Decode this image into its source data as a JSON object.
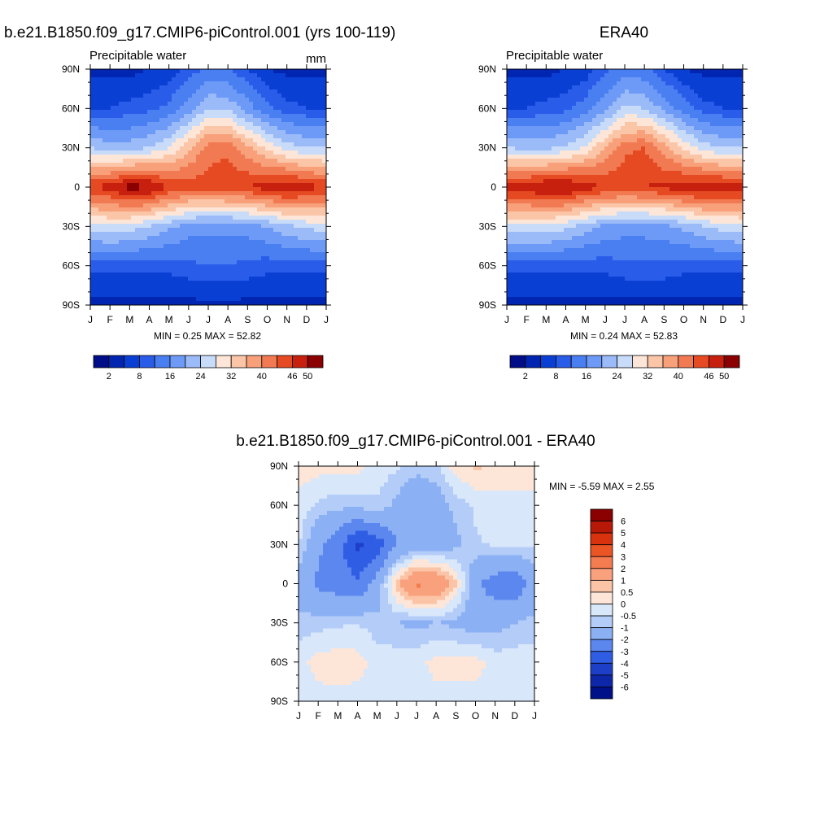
{
  "panels": [
    {
      "title": "b.e21.B1850.f09_g17.CMIP6-piControl.001 (yrs 100-119)",
      "left_label": "Precipitable water",
      "right_label": "mm",
      "stats": "MIN =   0.25 MAX =  52.82",
      "y_ticks": [
        "90N",
        "60N",
        "30N",
        "0",
        "30S",
        "60S",
        "90S"
      ],
      "x_ticks": [
        "J",
        "F",
        "M",
        "A",
        "M",
        "J",
        "J",
        "A",
        "S",
        "O",
        "N",
        "D",
        "J"
      ],
      "colorbar_labels": [
        "2",
        "8",
        "16",
        "24",
        "32",
        "40",
        "46",
        "50"
      ]
    },
    {
      "title": "ERA40",
      "left_label": "Precipitable water",
      "right_label": "",
      "stats": "MIN =   0.24 MAX =  52.83",
      "y_ticks": [
        "90N",
        "60N",
        "30N",
        "0",
        "30S",
        "60S",
        "90S"
      ],
      "x_ticks": [
        "J",
        "F",
        "M",
        "A",
        "M",
        "J",
        "J",
        "A",
        "S",
        "O",
        "N",
        "D",
        "J"
      ],
      "colorbar_labels": [
        "2",
        "8",
        "16",
        "24",
        "32",
        "40",
        "46",
        "50"
      ]
    },
    {
      "title": "b.e21.B1850.f09_g17.CMIP6-piControl.001 - ERA40",
      "stats": "MIN =  -5.59 MAX =   2.55",
      "y_ticks": [
        "90N",
        "60N",
        "30N",
        "0",
        "30S",
        "60S",
        "90S"
      ],
      "x_ticks": [
        "J",
        "F",
        "M",
        "A",
        "M",
        "J",
        "J",
        "A",
        "S",
        "O",
        "N",
        "D",
        "J"
      ],
      "colorbar_labels": [
        "6",
        "5",
        "4",
        "3",
        "2",
        "1",
        "0.5",
        "0",
        "-0.5",
        "-1",
        "-2",
        "-3",
        "-4",
        "-5",
        "-6"
      ]
    }
  ],
  "palettes": {
    "absolute": [
      "#000e88",
      "#0025b0",
      "#0a3fd4",
      "#2a5cea",
      "#4a7ff2",
      "#6d9af6",
      "#9bbaf8",
      "#c8dcf9",
      "#fde6d8",
      "#fbc6a8",
      "#f7a07a",
      "#f17a52",
      "#e54a22",
      "#c8200e",
      "#8b0000"
    ],
    "difference": [
      "#8b0000",
      "#b81808",
      "#d8330e",
      "#eb5424",
      "#f57b50",
      "#f9a07c",
      "#fcc4a6",
      "#fde6d8",
      "#d9e7fb",
      "#b3ccf8",
      "#8bb0f4",
      "#5b87ee",
      "#2f5de4",
      "#1d3fc8",
      "#0e27a8",
      "#001088"
    ]
  },
  "chart_data": [
    {
      "type": "heatmap",
      "title": "b.e21.B1850.f09_g17.CMIP6-piControl.001 (yrs 100-119)",
      "variable": "Precipitable water",
      "units": "mm",
      "x": [
        "J",
        "F",
        "M",
        "A",
        "M",
        "J",
        "J",
        "A",
        "S",
        "O",
        "N",
        "D",
        "J"
      ],
      "y": [
        "90S",
        "60S",
        "30S",
        "0",
        "30N",
        "60N",
        "90N"
      ],
      "values": [
        [
          1,
          1,
          1,
          1,
          1,
          1,
          1,
          1,
          1,
          1,
          1,
          1,
          1
        ],
        [
          6,
          6,
          6,
          6,
          6,
          7,
          8,
          8,
          7,
          6,
          6,
          6,
          6
        ],
        [
          22,
          23,
          22,
          20,
          17,
          14,
          13,
          13,
          14,
          16,
          19,
          21,
          22
        ],
        [
          44,
          46,
          50,
          49,
          44,
          42,
          42,
          43,
          44,
          46,
          48,
          46,
          44
        ],
        [
          20,
          18,
          18,
          20,
          24,
          31,
          38,
          39,
          33,
          27,
          22,
          20,
          20
        ],
        [
          5,
          5,
          6,
          7,
          9,
          14,
          20,
          19,
          14,
          9,
          6,
          5,
          5
        ],
        [
          1,
          1,
          1,
          2,
          3,
          6,
          9,
          8,
          5,
          2,
          1,
          1,
          1
        ]
      ],
      "min": 0.25,
      "max": 52.82,
      "levels": [
        2,
        8,
        16,
        24,
        32,
        40,
        46,
        50
      ]
    },
    {
      "type": "heatmap",
      "title": "ERA40",
      "variable": "Precipitable water",
      "x": [
        "J",
        "F",
        "M",
        "A",
        "M",
        "J",
        "J",
        "A",
        "S",
        "O",
        "N",
        "D",
        "J"
      ],
      "y": [
        "90S",
        "60S",
        "30S",
        "0",
        "30N",
        "60N",
        "90N"
      ],
      "values": [
        [
          1,
          1,
          1,
          1,
          1,
          1,
          1,
          1,
          1,
          1,
          1,
          1,
          1
        ],
        [
          6,
          6,
          6,
          6,
          6,
          6,
          7,
          7,
          7,
          6,
          6,
          6,
          6
        ],
        [
          23,
          23,
          23,
          21,
          18,
          15,
          14,
          14,
          15,
          17,
          20,
          22,
          23
        ],
        [
          46,
          47,
          49,
          49,
          46,
          44,
          43,
          44,
          45,
          47,
          48,
          47,
          46
        ],
        [
          20,
          19,
          19,
          21,
          25,
          32,
          39,
          40,
          34,
          27,
          22,
          20,
          20
        ],
        [
          5,
          5,
          6,
          7,
          10,
          15,
          21,
          20,
          15,
          10,
          6,
          5,
          5
        ],
        [
          1,
          1,
          1,
          2,
          3,
          7,
          10,
          9,
          5,
          2,
          1,
          1,
          1
        ]
      ],
      "min": 0.24,
      "max": 52.83,
      "levels": [
        2,
        8,
        16,
        24,
        32,
        40,
        46,
        50
      ]
    },
    {
      "type": "heatmap",
      "title": "b.e21.B1850.f09_g17.CMIP6-piControl.001 - ERA40",
      "x": [
        "J",
        "F",
        "M",
        "A",
        "M",
        "J",
        "J",
        "A",
        "S",
        "O",
        "N",
        "D",
        "J"
      ],
      "y": [
        "90S",
        "60S",
        "30S",
        "0",
        "30N",
        "60N",
        "90N"
      ],
      "values": [
        [
          -0.3,
          -0.2,
          -0.2,
          -0.2,
          -0.2,
          -0.2,
          -0.2,
          -0.2,
          -0.2,
          -0.2,
          -0.2,
          -0.2,
          -0.3
        ],
        [
          -0.2,
          0.2,
          0.3,
          0.2,
          -0.2,
          -0.2,
          -0.2,
          0.2,
          0.2,
          0.2,
          -0.2,
          -0.2,
          -0.2
        ],
        [
          -0.8,
          -0.7,
          -0.6,
          -0.5,
          -0.8,
          -1.0,
          -1.2,
          -1.0,
          -1.2,
          -1.4,
          -1.3,
          -1.0,
          -0.8
        ],
        [
          -1.5,
          -2.2,
          -2.5,
          -2.8,
          -1.5,
          0.8,
          2.2,
          2.0,
          0.6,
          -1.8,
          -2.5,
          -2.8,
          -1.5
        ],
        [
          -0.4,
          -1.8,
          -2.6,
          -4.2,
          -3.6,
          -2.0,
          -1.5,
          -1.6,
          -1.2,
          -0.6,
          -0.4,
          -0.3,
          -0.4
        ],
        [
          -0.2,
          -0.6,
          -0.8,
          -0.8,
          -0.6,
          -1.2,
          -2.0,
          -1.5,
          -0.8,
          -0.4,
          -0.2,
          -0.2,
          -0.2
        ],
        [
          0.3,
          0.2,
          0.2,
          0.2,
          -0.2,
          -0.4,
          -0.7,
          -0.6,
          0.3,
          0.6,
          0.4,
          0.3,
          0.3
        ]
      ],
      "min": -5.59,
      "max": 2.55,
      "levels": [
        6,
        5,
        4,
        3,
        2,
        1,
        0.5,
        0,
        -0.5,
        -1,
        -2,
        -3,
        -4,
        -5,
        -6
      ]
    }
  ]
}
